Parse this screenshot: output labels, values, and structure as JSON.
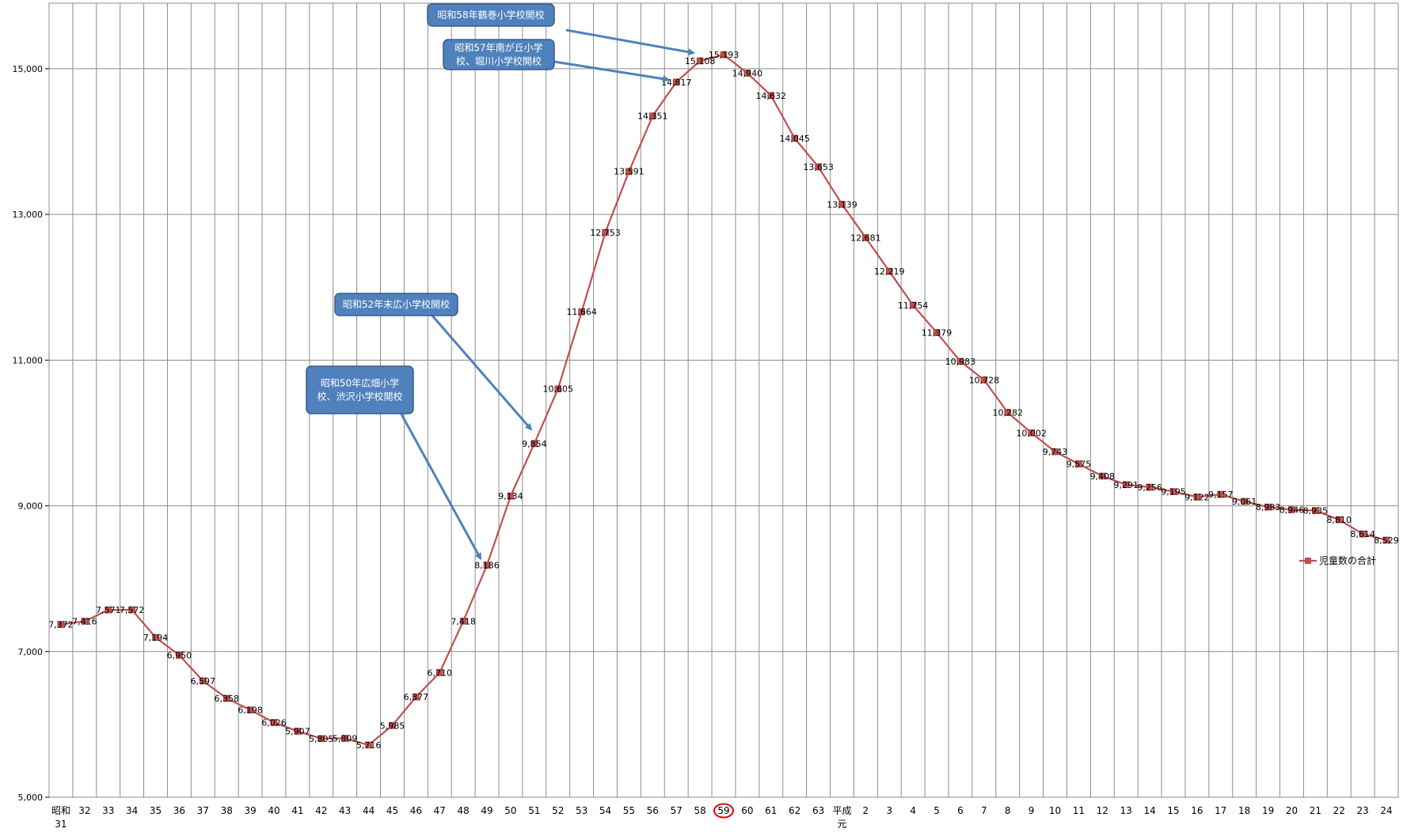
{
  "chart_data": {
    "type": "line",
    "title": "",
    "xlabel": "",
    "ylabel": "",
    "ylim": [
      5000,
      15900
    ],
    "yticks": [
      5000,
      7000,
      9000,
      11000,
      13000,
      15000
    ],
    "ytick_labels": [
      "5,000",
      "7,000",
      "9,000",
      "11,000",
      "13,000",
      "15,000"
    ],
    "grid": true,
    "legend_position": "right",
    "categories": [
      "昭和\n31",
      "32",
      "33",
      "34",
      "35",
      "36",
      "37",
      "38",
      "39",
      "40",
      "41",
      "42",
      "43",
      "44",
      "45",
      "46",
      "47",
      "48",
      "49",
      "50",
      "51",
      "52",
      "53",
      "54",
      "55",
      "56",
      "57",
      "58",
      "59",
      "60",
      "61",
      "62",
      "63",
      "平成\n元",
      "2",
      "3",
      "4",
      "5",
      "6",
      "7",
      "8",
      "9",
      "10",
      "11",
      "12",
      "13",
      "14",
      "15",
      "16",
      "17",
      "18",
      "19",
      "20",
      "21",
      "22",
      "23",
      "24"
    ],
    "highlighted_category": "59",
    "series": [
      {
        "name": "児童数の合計",
        "color": "#c0504d",
        "values": [
          7372,
          7416,
          7571,
          7572,
          7194,
          6950,
          6597,
          6358,
          6198,
          6026,
          5907,
          5805,
          5809,
          5716,
          5985,
          6377,
          6710,
          7418,
          8186,
          9134,
          9854,
          10605,
          11664,
          12753,
          13591,
          14351,
          14817,
          15108,
          15193,
          14940,
          14632,
          14045,
          13653,
          13139,
          12681,
          12219,
          11754,
          11379,
          10983,
          10728,
          10282,
          10002,
          9743,
          9575,
          9408,
          9291,
          9256,
          9195,
          9122,
          9157,
          9061,
          8983,
          8946,
          8935,
          8810,
          8614,
          8529
        ],
        "labels": [
          "7,372",
          "7,416",
          "7,571",
          "7,572",
          "7,194",
          "6,950",
          "6,597",
          "6,358",
          "6,198",
          "6,026",
          "5,907",
          "5,805",
          "5,809",
          "5,716",
          "5,985",
          "6,377",
          "6,710",
          "7,418",
          "8,186",
          "9,134",
          "9,854",
          "10,605",
          "11,664",
          "12,753",
          "13,591",
          "14,351",
          "14,817",
          "15,108",
          "15,193",
          "14,940",
          "14,632",
          "14,045",
          "13,653",
          "13,139",
          "12,681",
          "12,219",
          "11,754",
          "11,379",
          "10,983",
          "10,728",
          "10,282",
          "10,002",
          "9,743",
          "9,575",
          "9,408",
          "9,291",
          "9,256",
          "9,195",
          "9,122",
          "9,157",
          "9,061",
          "8,983",
          "8,946",
          "8,935",
          "8,810",
          "8,614",
          "8,529"
        ]
      }
    ],
    "annotations": [
      {
        "text": [
          "昭和58年鶴巻小学校開校"
        ],
        "target": "58"
      },
      {
        "text": [
          "昭和57年南が丘小学",
          "校、堀川小学校開校"
        ],
        "target": "57"
      },
      {
        "text": [
          "昭和52年末広小学校開校"
        ],
        "target": "51"
      },
      {
        "text": [
          "昭和50年広畑小学",
          "校、渋沢小学校開校"
        ],
        "target": "49"
      }
    ]
  },
  "colors": {
    "line": "#c0504d",
    "callout_fill": "#4f81bd",
    "callout_border": "#385d8a",
    "grid": "#8c8c8c",
    "highlight_circle": "#e00000"
  }
}
